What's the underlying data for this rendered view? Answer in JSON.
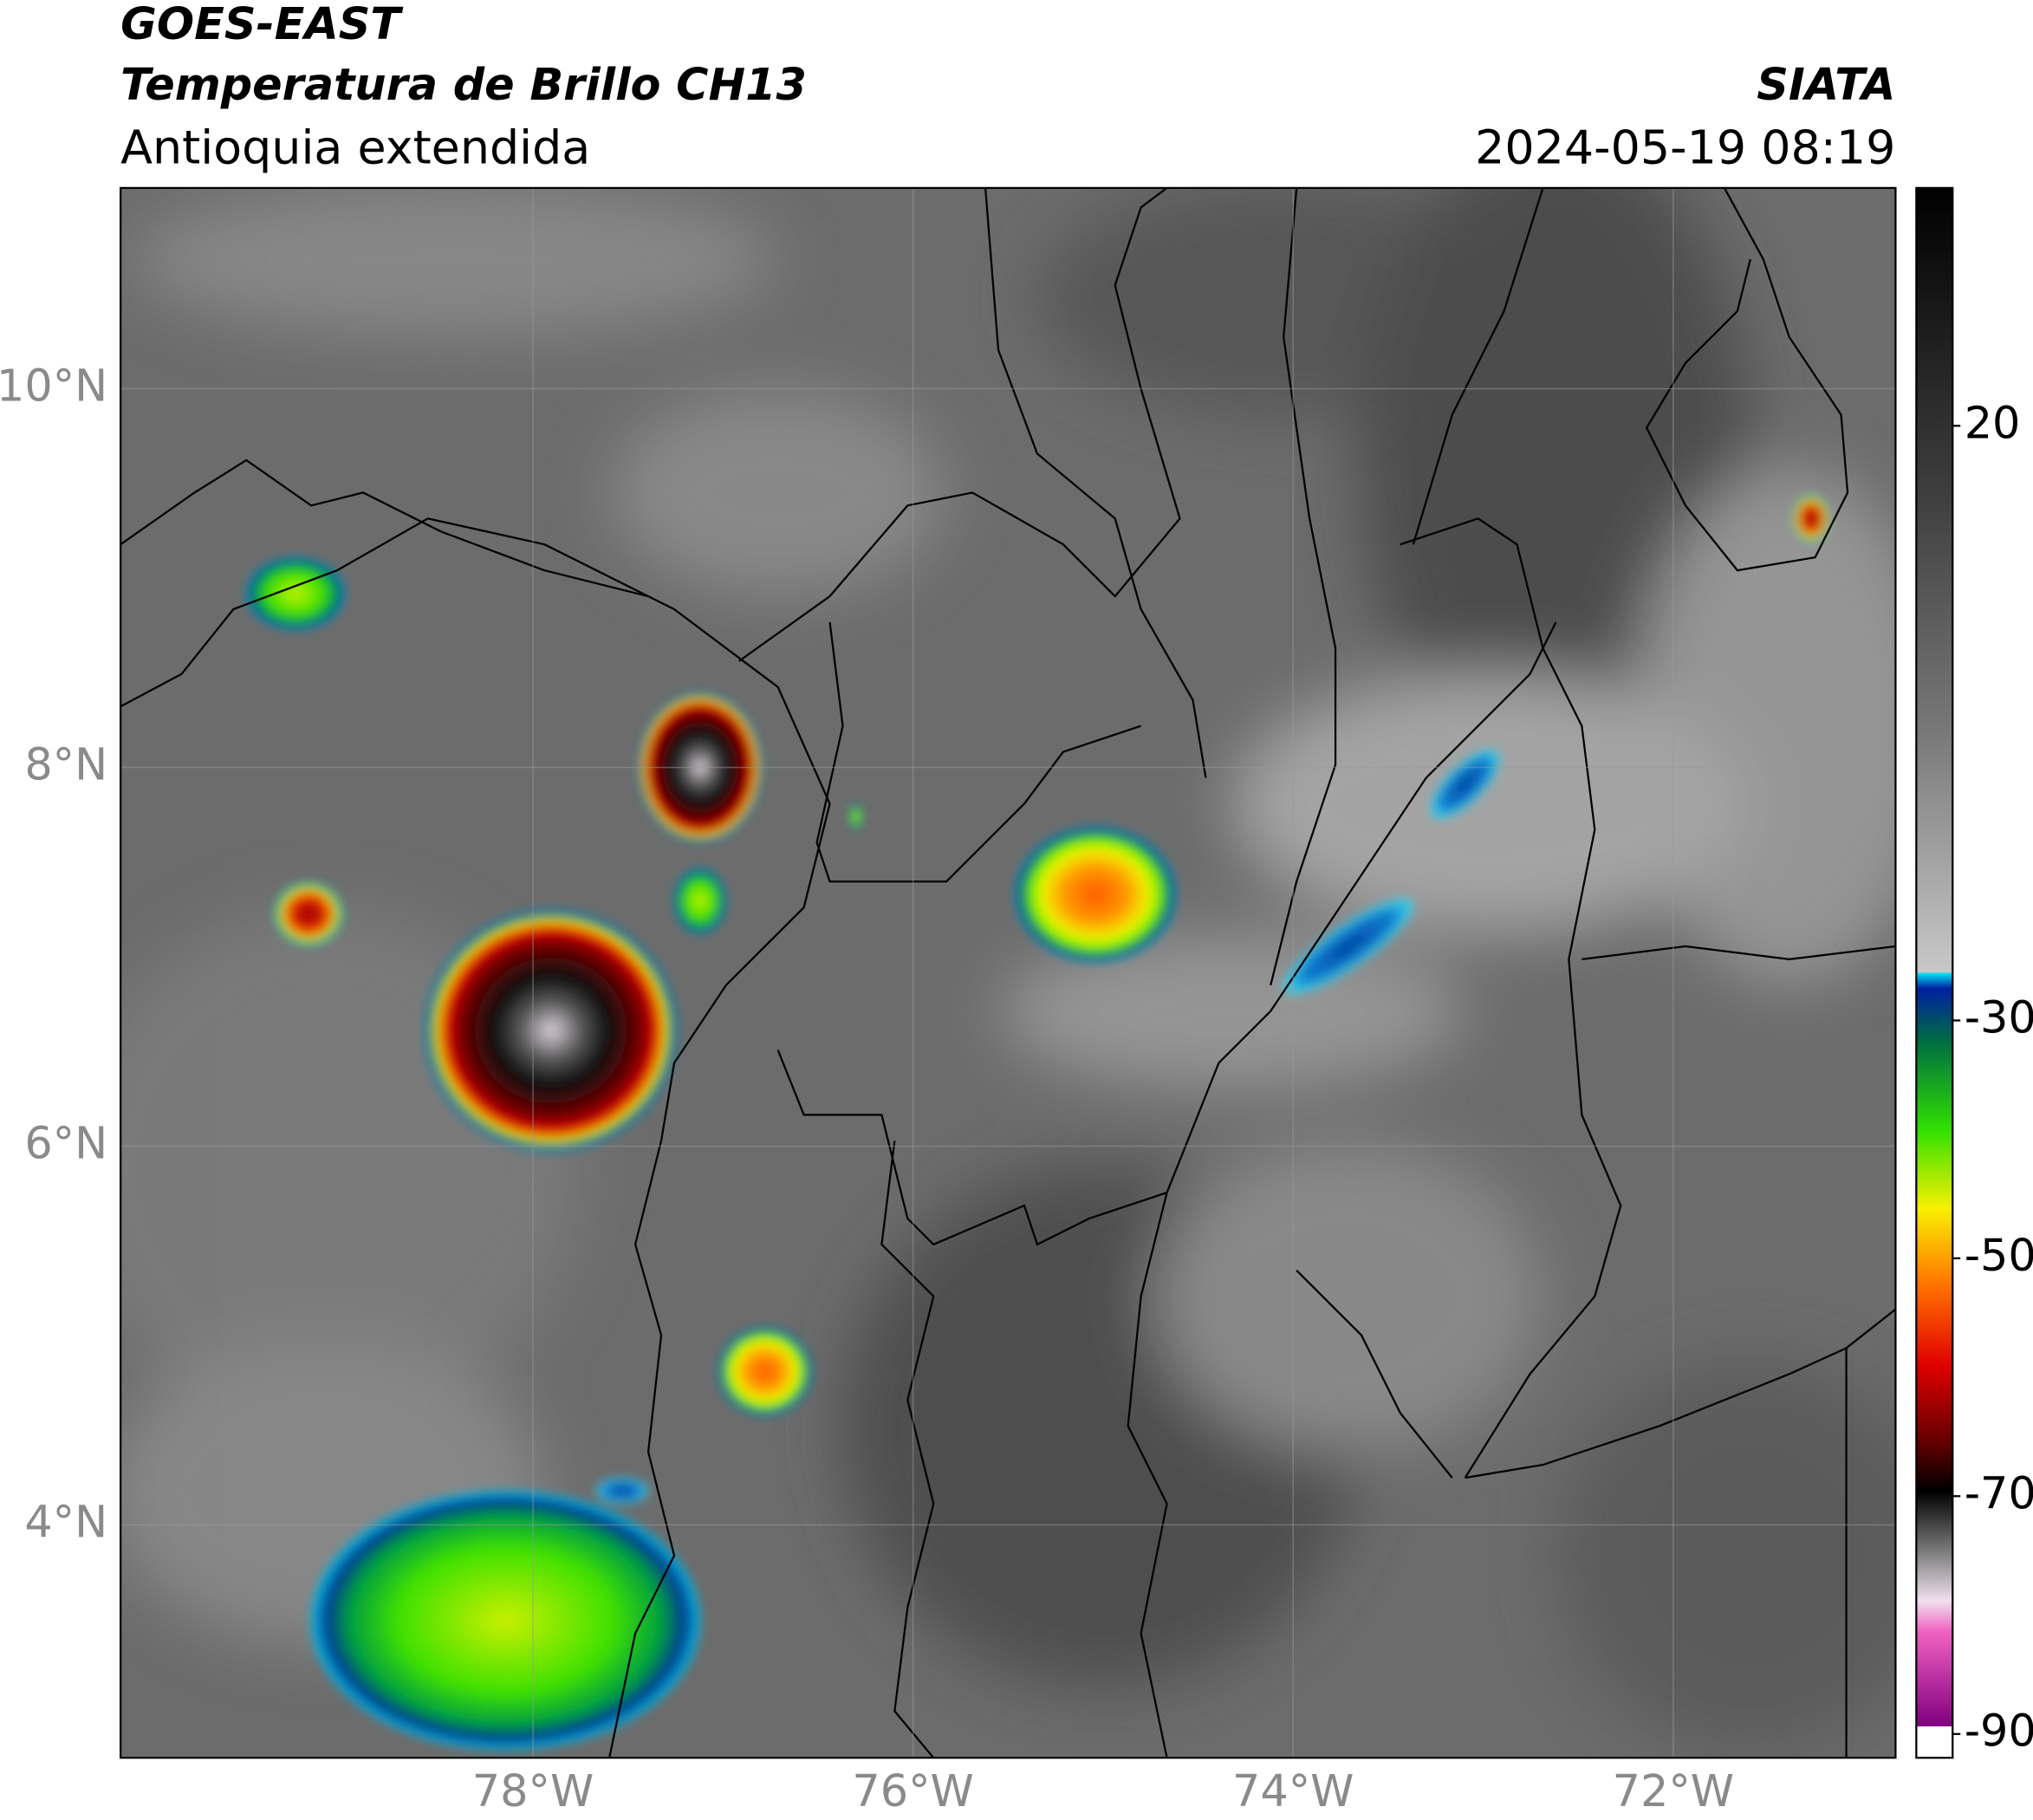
{
  "header": {
    "satellite": "GOES-EAST",
    "product": "Temperatura de Brillo CH13",
    "region": "Antioquia extendida",
    "source": "SIATA",
    "datetime": "2024-05-19 08:19"
  },
  "map": {
    "xlim": [
      -80.17,
      -70.83
    ],
    "ylim": [
      2.77,
      11.06
    ],
    "xticks": [
      {
        "value": -78,
        "label": "78°W"
      },
      {
        "value": -76,
        "label": "76°W"
      },
      {
        "value": -74,
        "label": "74°W"
      },
      {
        "value": -72,
        "label": "72°W"
      }
    ],
    "yticks": [
      {
        "value": 10,
        "label": "10°N"
      },
      {
        "value": 8,
        "label": "8°N"
      },
      {
        "value": 6,
        "label": "6°N"
      },
      {
        "value": 4,
        "label": "4°N"
      }
    ],
    "grid": true
  },
  "colorbar": {
    "lim": [
      -92,
      40
    ],
    "ticks": [
      20,
      -30,
      -50,
      -70,
      -90
    ]
  }
}
